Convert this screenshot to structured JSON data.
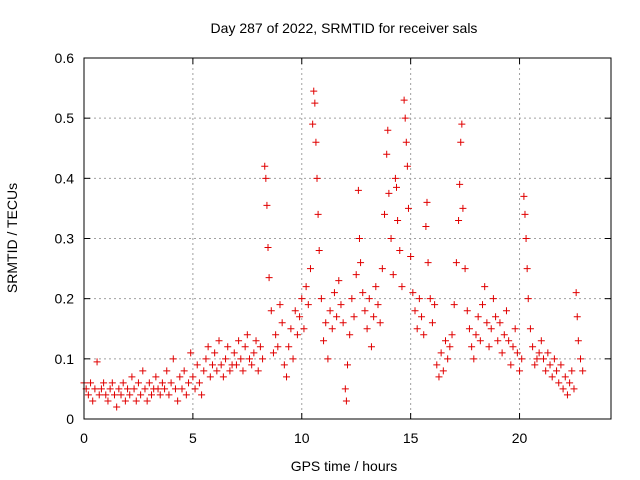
{
  "chart_data": {
    "type": "scatter",
    "title": "Day 287 of 2022, SRMTID for receiver sals",
    "xlabel": "GPS time / hours",
    "ylabel": "SRMTID / TECUs",
    "xlim": [
      0,
      24.2
    ],
    "ylim": [
      0,
      0.6
    ],
    "x_ticks": [
      0,
      5,
      10,
      15,
      20
    ],
    "x_tick_labels": [
      "0",
      "5",
      "10",
      "15",
      "20"
    ],
    "y_ticks": [
      0,
      0.1,
      0.2,
      0.3,
      0.4,
      0.5,
      0.6
    ],
    "y_tick_labels": [
      "0",
      "0.1",
      "0.2",
      "0.3",
      "0.4",
      "0.5",
      "0.6"
    ],
    "grid": true,
    "marker": "+",
    "color": "#e00000",
    "series": [
      {
        "name": "sals",
        "points": [
          [
            0.0,
            0.06
          ],
          [
            0.1,
            0.05
          ],
          [
            0.2,
            0.04
          ],
          [
            0.3,
            0.06
          ],
          [
            0.4,
            0.03
          ],
          [
            0.5,
            0.05
          ],
          [
            0.6,
            0.095
          ],
          [
            0.7,
            0.04
          ],
          [
            0.8,
            0.05
          ],
          [
            0.9,
            0.06
          ],
          [
            1.0,
            0.04
          ],
          [
            1.1,
            0.03
          ],
          [
            1.2,
            0.05
          ],
          [
            1.3,
            0.06
          ],
          [
            1.4,
            0.04
          ],
          [
            1.5,
            0.02
          ],
          [
            1.6,
            0.05
          ],
          [
            1.7,
            0.04
          ],
          [
            1.8,
            0.06
          ],
          [
            1.9,
            0.03
          ],
          [
            2.0,
            0.05
          ],
          [
            2.1,
            0.04
          ],
          [
            2.2,
            0.07
          ],
          [
            2.3,
            0.05
          ],
          [
            2.4,
            0.03
          ],
          [
            2.5,
            0.06
          ],
          [
            2.6,
            0.04
          ],
          [
            2.7,
            0.08
          ],
          [
            2.8,
            0.05
          ],
          [
            2.9,
            0.03
          ],
          [
            3.0,
            0.06
          ],
          [
            3.1,
            0.04
          ],
          [
            3.2,
            0.05
          ],
          [
            3.3,
            0.07
          ],
          [
            3.4,
            0.05
          ],
          [
            3.5,
            0.04
          ],
          [
            3.6,
            0.06
          ],
          [
            3.7,
            0.05
          ],
          [
            3.8,
            0.08
          ],
          [
            3.9,
            0.04
          ],
          [
            4.0,
            0.06
          ],
          [
            4.1,
            0.1
          ],
          [
            4.2,
            0.05
          ],
          [
            4.3,
            0.03
          ],
          [
            4.4,
            0.07
          ],
          [
            4.5,
            0.05
          ],
          [
            4.6,
            0.08
          ],
          [
            4.7,
            0.04
          ],
          [
            4.8,
            0.06
          ],
          [
            4.9,
            0.11
          ],
          [
            5.0,
            0.07
          ],
          [
            5.1,
            0.05
          ],
          [
            5.2,
            0.09
          ],
          [
            5.3,
            0.06
          ],
          [
            5.4,
            0.04
          ],
          [
            5.5,
            0.08
          ],
          [
            5.6,
            0.1
          ],
          [
            5.7,
            0.12
          ],
          [
            5.8,
            0.07
          ],
          [
            5.9,
            0.09
          ],
          [
            6.0,
            0.11
          ],
          [
            6.1,
            0.08
          ],
          [
            6.2,
            0.13
          ],
          [
            6.3,
            0.09
          ],
          [
            6.4,
            0.07
          ],
          [
            6.5,
            0.1
          ],
          [
            6.6,
            0.12
          ],
          [
            6.7,
            0.08
          ],
          [
            6.8,
            0.09
          ],
          [
            6.9,
            0.11
          ],
          [
            7.0,
            0.09
          ],
          [
            7.1,
            0.13
          ],
          [
            7.2,
            0.1
          ],
          [
            7.3,
            0.08
          ],
          [
            7.4,
            0.12
          ],
          [
            7.5,
            0.14
          ],
          [
            7.6,
            0.1
          ],
          [
            7.7,
            0.09
          ],
          [
            7.8,
            0.11
          ],
          [
            7.9,
            0.13
          ],
          [
            8.0,
            0.08
          ],
          [
            8.1,
            0.12
          ],
          [
            8.2,
            0.1
          ],
          [
            8.3,
            0.42
          ],
          [
            8.35,
            0.4
          ],
          [
            8.4,
            0.355
          ],
          [
            8.45,
            0.285
          ],
          [
            8.5,
            0.235
          ],
          [
            8.6,
            0.18
          ],
          [
            8.7,
            0.11
          ],
          [
            8.8,
            0.14
          ],
          [
            8.9,
            0.12
          ],
          [
            9.0,
            0.19
          ],
          [
            9.1,
            0.16
          ],
          [
            9.2,
            0.09
          ],
          [
            9.3,
            0.07
          ],
          [
            9.4,
            0.12
          ],
          [
            9.5,
            0.15
          ],
          [
            9.6,
            0.1
          ],
          [
            9.7,
            0.18
          ],
          [
            9.8,
            0.14
          ],
          [
            9.9,
            0.17
          ],
          [
            10.0,
            0.2
          ],
          [
            10.1,
            0.15
          ],
          [
            10.2,
            0.22
          ],
          [
            10.3,
            0.19
          ],
          [
            10.4,
            0.25
          ],
          [
            10.5,
            0.49
          ],
          [
            10.55,
            0.545
          ],
          [
            10.6,
            0.525
          ],
          [
            10.65,
            0.46
          ],
          [
            10.7,
            0.4
          ],
          [
            10.75,
            0.34
          ],
          [
            10.8,
            0.28
          ],
          [
            10.9,
            0.2
          ],
          [
            11.0,
            0.13
          ],
          [
            11.1,
            0.16
          ],
          [
            11.2,
            0.1
          ],
          [
            11.3,
            0.18
          ],
          [
            11.4,
            0.15
          ],
          [
            11.5,
            0.21
          ],
          [
            11.6,
            0.17
          ],
          [
            11.7,
            0.23
          ],
          [
            11.8,
            0.19
          ],
          [
            11.9,
            0.16
          ],
          [
            12.0,
            0.05
          ],
          [
            12.05,
            0.03
          ],
          [
            12.1,
            0.09
          ],
          [
            12.2,
            0.14
          ],
          [
            12.3,
            0.2
          ],
          [
            12.4,
            0.17
          ],
          [
            12.5,
            0.24
          ],
          [
            12.6,
            0.38
          ],
          [
            12.65,
            0.3
          ],
          [
            12.7,
            0.26
          ],
          [
            12.8,
            0.21
          ],
          [
            12.9,
            0.18
          ],
          [
            13.0,
            0.15
          ],
          [
            13.1,
            0.2
          ],
          [
            13.2,
            0.12
          ],
          [
            13.3,
            0.17
          ],
          [
            13.4,
            0.22
          ],
          [
            13.5,
            0.19
          ],
          [
            13.6,
            0.16
          ],
          [
            13.7,
            0.25
          ],
          [
            13.8,
            0.34
          ],
          [
            13.9,
            0.44
          ],
          [
            13.95,
            0.48
          ],
          [
            14.0,
            0.375
          ],
          [
            14.1,
            0.3
          ],
          [
            14.2,
            0.24
          ],
          [
            14.3,
            0.4
          ],
          [
            14.35,
            0.385
          ],
          [
            14.4,
            0.33
          ],
          [
            14.5,
            0.28
          ],
          [
            14.6,
            0.22
          ],
          [
            14.7,
            0.53
          ],
          [
            14.75,
            0.5
          ],
          [
            14.8,
            0.46
          ],
          [
            14.85,
            0.42
          ],
          [
            14.9,
            0.35
          ],
          [
            15.0,
            0.27
          ],
          [
            15.1,
            0.21
          ],
          [
            15.2,
            0.18
          ],
          [
            15.3,
            0.15
          ],
          [
            15.4,
            0.2
          ],
          [
            15.5,
            0.17
          ],
          [
            15.6,
            0.14
          ],
          [
            15.7,
            0.32
          ],
          [
            15.75,
            0.36
          ],
          [
            15.8,
            0.26
          ],
          [
            15.9,
            0.2
          ],
          [
            16.0,
            0.16
          ],
          [
            16.1,
            0.19
          ],
          [
            16.2,
            0.09
          ],
          [
            16.3,
            0.07
          ],
          [
            16.4,
            0.11
          ],
          [
            16.5,
            0.08
          ],
          [
            16.6,
            0.13
          ],
          [
            16.7,
            0.1
          ],
          [
            16.8,
            0.12
          ],
          [
            16.9,
            0.14
          ],
          [
            17.0,
            0.19
          ],
          [
            17.1,
            0.26
          ],
          [
            17.2,
            0.33
          ],
          [
            17.25,
            0.39
          ],
          [
            17.3,
            0.46
          ],
          [
            17.35,
            0.49
          ],
          [
            17.4,
            0.35
          ],
          [
            17.5,
            0.25
          ],
          [
            17.6,
            0.18
          ],
          [
            17.7,
            0.15
          ],
          [
            17.8,
            0.12
          ],
          [
            17.9,
            0.1
          ],
          [
            18.0,
            0.14
          ],
          [
            18.1,
            0.17
          ],
          [
            18.2,
            0.13
          ],
          [
            18.3,
            0.19
          ],
          [
            18.4,
            0.22
          ],
          [
            18.5,
            0.16
          ],
          [
            18.6,
            0.12
          ],
          [
            18.7,
            0.15
          ],
          [
            18.8,
            0.2
          ],
          [
            18.9,
            0.17
          ],
          [
            19.0,
            0.13
          ],
          [
            19.1,
            0.16
          ],
          [
            19.2,
            0.11
          ],
          [
            19.3,
            0.14
          ],
          [
            19.4,
            0.18
          ],
          [
            19.5,
            0.13
          ],
          [
            19.6,
            0.09
          ],
          [
            19.7,
            0.12
          ],
          [
            19.8,
            0.15
          ],
          [
            19.9,
            0.11
          ],
          [
            20.0,
            0.08
          ],
          [
            20.1,
            0.1
          ],
          [
            20.2,
            0.37
          ],
          [
            20.25,
            0.34
          ],
          [
            20.3,
            0.3
          ],
          [
            20.35,
            0.25
          ],
          [
            20.4,
            0.2
          ],
          [
            20.5,
            0.15
          ],
          [
            20.6,
            0.12
          ],
          [
            20.7,
            0.09
          ],
          [
            20.8,
            0.1
          ],
          [
            20.9,
            0.11
          ],
          [
            21.0,
            0.13
          ],
          [
            21.1,
            0.1
          ],
          [
            21.2,
            0.08
          ],
          [
            21.3,
            0.11
          ],
          [
            21.4,
            0.09
          ],
          [
            21.5,
            0.07
          ],
          [
            21.6,
            0.1
          ],
          [
            21.7,
            0.08
          ],
          [
            21.8,
            0.06
          ],
          [
            21.9,
            0.09
          ],
          [
            22.0,
            0.05
          ],
          [
            22.1,
            0.07
          ],
          [
            22.2,
            0.04
          ],
          [
            22.3,
            0.06
          ],
          [
            22.4,
            0.08
          ],
          [
            22.5,
            0.05
          ],
          [
            22.6,
            0.21
          ],
          [
            22.65,
            0.17
          ],
          [
            22.7,
            0.13
          ],
          [
            22.8,
            0.1
          ],
          [
            22.9,
            0.08
          ]
        ]
      }
    ]
  }
}
